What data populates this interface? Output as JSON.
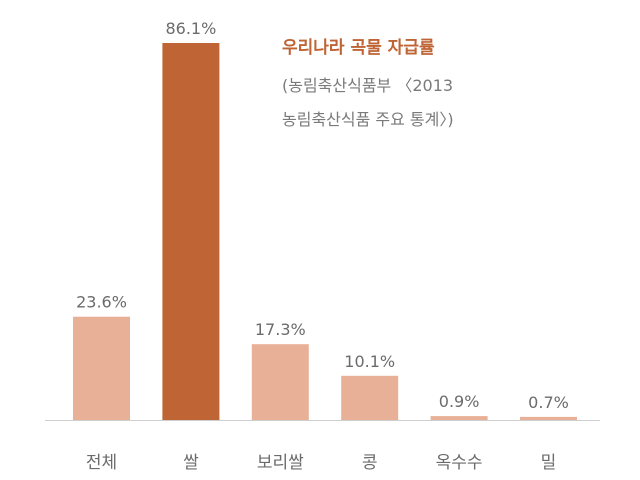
{
  "chart_data": {
    "type": "bar",
    "title": "우리나라 곡물 자급률",
    "source": [
      "(농림축산식품부 〈2013",
      "농림축산식품 주요 통계〉)"
    ],
    "categories": [
      "전체",
      "쌀",
      "보리쌀",
      "콩",
      "옥수수",
      "밀"
    ],
    "values": [
      23.6,
      86.1,
      17.3,
      10.1,
      0.9,
      0.7
    ],
    "value_labels": [
      "23.6%",
      "86.1%",
      "17.3%",
      "10.1%",
      "0.9%",
      "0.7%"
    ],
    "highlight_index": 1,
    "ylim": [
      0,
      86.1
    ],
    "xlabel": "",
    "ylabel": "",
    "grid": false,
    "colors": {
      "bar": "#e8b097",
      "highlight": "#bf6434",
      "label": "#6b6b6b",
      "axis": "#cfcfcf"
    }
  }
}
